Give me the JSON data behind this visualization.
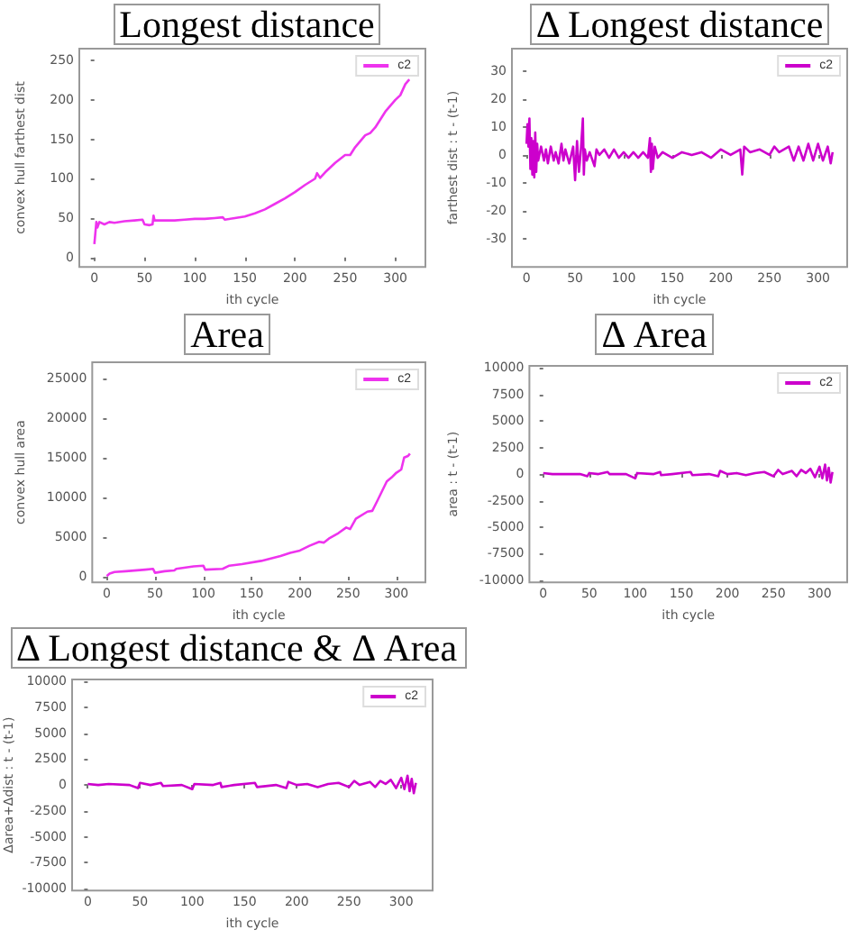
{
  "chart_data": [
    {
      "type": "line",
      "title": "Longest distance",
      "xlabel": "ith cycle",
      "ylabel": "convex hull farthest dist",
      "legend": "top right",
      "xlim": [
        -15,
        330
      ],
      "xticks": [
        0,
        50,
        100,
        150,
        200,
        250,
        300
      ],
      "ylim": [
        -12,
        265
      ],
      "yticks": [
        0,
        50,
        100,
        150,
        200,
        250
      ],
      "x": [
        0,
        2,
        3,
        5,
        10,
        15,
        20,
        30,
        40,
        48,
        50,
        55,
        58,
        59,
        60,
        70,
        80,
        90,
        100,
        110,
        120,
        128,
        130,
        140,
        150,
        160,
        170,
        180,
        190,
        200,
        210,
        220,
        222,
        225,
        230,
        240,
        250,
        255,
        260,
        270,
        275,
        280,
        290,
        300,
        305,
        310,
        314
      ],
      "series": [
        {
          "name": "c2",
          "color": "#ee33ee",
          "values": [
            17,
            45,
            38,
            45,
            42,
            45,
            44,
            46,
            47,
            48,
            42,
            41,
            42,
            53,
            47,
            47,
            47,
            48,
            49,
            49,
            50,
            51,
            48,
            50,
            52,
            56,
            61,
            68,
            75,
            83,
            92,
            100,
            107,
            101,
            108,
            120,
            130,
            130,
            140,
            155,
            158,
            165,
            185,
            200,
            206,
            220,
            226
          ]
        }
      ]
    },
    {
      "type": "line",
      "title": "Δ Longest distance",
      "xlabel": "ith cycle",
      "ylabel": "farthest dist : t - (t-1)",
      "legend": "top right",
      "xlim": [
        -15,
        330
      ],
      "xticks": [
        0,
        50,
        100,
        150,
        200,
        250,
        300
      ],
      "ylim": [
        -40,
        38
      ],
      "yticks": [
        -30,
        -20,
        -10,
        0,
        10,
        20,
        30
      ],
      "x": [
        0,
        1,
        2,
        3,
        4,
        5,
        6,
        7,
        8,
        9,
        10,
        11,
        12,
        15,
        18,
        20,
        22,
        25,
        28,
        30,
        33,
        36,
        38,
        40,
        44,
        48,
        50,
        52,
        54,
        56,
        58,
        59,
        60,
        62,
        65,
        70,
        72,
        75,
        80,
        85,
        90,
        95,
        100,
        105,
        110,
        115,
        120,
        125,
        127,
        128,
        129,
        130,
        132,
        135,
        140,
        150,
        160,
        170,
        180,
        190,
        200,
        210,
        220,
        222,
        224,
        230,
        240,
        250,
        255,
        260,
        270,
        275,
        280,
        285,
        290,
        295,
        300,
        305,
        310,
        313,
        315
      ],
      "series": [
        {
          "name": "c2",
          "color": "#cc00cc",
          "values": [
            4,
            11,
            3,
            13,
            -5,
            6,
            -7,
            5,
            -8,
            8,
            -6,
            4,
            -2,
            3,
            -2,
            2,
            -3,
            3,
            -2,
            1,
            -3,
            4,
            -2,
            2,
            -3,
            3,
            -9,
            5,
            -6,
            2,
            13,
            -7,
            2,
            -2,
            1,
            -4,
            2,
            0,
            2,
            -1,
            2,
            -1,
            1,
            -1,
            1,
            -1,
            1,
            -1,
            6,
            -6,
            4,
            -5,
            3,
            -1,
            1,
            -1,
            1,
            0,
            1,
            -1,
            2,
            0,
            2,
            -7,
            3,
            1,
            2,
            0,
            3,
            1,
            3,
            -2,
            3,
            -2,
            4,
            -2,
            4,
            -2,
            3,
            -3,
            1
          ]
        }
      ]
    },
    {
      "type": "line",
      "title": "Area",
      "xlabel": "ith cycle",
      "ylabel": "convex hull area",
      "legend": "top right",
      "xlim": [
        -15,
        330
      ],
      "xticks": [
        0,
        50,
        100,
        150,
        200,
        250,
        300
      ],
      "ylim": [
        -700,
        27000
      ],
      "yticks": [
        0,
        5000,
        10000,
        15000,
        20000,
        25000
      ],
      "x": [
        0,
        3,
        8,
        20,
        40,
        48,
        50,
        60,
        70,
        72,
        90,
        100,
        102,
        120,
        127,
        140,
        160,
        180,
        190,
        200,
        210,
        220,
        225,
        230,
        240,
        248,
        252,
        258,
        270,
        275,
        280,
        290,
        295,
        300,
        305,
        308,
        312,
        314
      ],
      "series": [
        {
          "name": "c2",
          "color": "#ee33ee",
          "values": [
            100,
            400,
            600,
            700,
            900,
            1000,
            500,
            700,
            800,
            1000,
            1300,
            1400,
            900,
            1000,
            1400,
            1600,
            2000,
            2600,
            3000,
            3300,
            3900,
            4400,
            4300,
            4800,
            5500,
            6200,
            6000,
            7300,
            8200,
            8300,
            9500,
            12000,
            12500,
            13100,
            13500,
            15000,
            15200,
            15500
          ]
        }
      ]
    },
    {
      "type": "line",
      "title": "Δ Area",
      "xlabel": "ith cycle",
      "ylabel": "area : t - (t-1)",
      "legend": "top right",
      "xlim": [
        -15,
        330
      ],
      "xticks": [
        0,
        50,
        100,
        150,
        200,
        250,
        300
      ],
      "ylim": [
        -10200,
        10200
      ],
      "yticks": [
        -10000,
        -7500,
        -5000,
        -2500,
        0,
        2500,
        5000,
        7500,
        10000
      ],
      "x": [
        0,
        10,
        20,
        40,
        48,
        50,
        60,
        70,
        72,
        90,
        100,
        102,
        120,
        127,
        128,
        140,
        160,
        162,
        180,
        190,
        192,
        200,
        210,
        220,
        230,
        240,
        250,
        255,
        260,
        270,
        275,
        280,
        285,
        290,
        295,
        300,
        303,
        306,
        308,
        310,
        312,
        314
      ],
      "series": [
        {
          "name": "c2",
          "color": "#cc00cc",
          "values": [
            100,
            0,
            0,
            0,
            -200,
            100,
            0,
            200,
            0,
            0,
            -400,
            100,
            0,
            200,
            -100,
            0,
            200,
            -100,
            0,
            -200,
            300,
            0,
            100,
            -100,
            100,
            200,
            -200,
            400,
            0,
            300,
            -200,
            400,
            100,
            500,
            -300,
            700,
            -400,
            900,
            -600,
            600,
            -800,
            200
          ]
        }
      ]
    },
    {
      "type": "line",
      "title": "Δ Longest distance & Δ Area",
      "xlabel": "ith cycle",
      "ylabel": "Δarea+Δdist : t - (t-1)",
      "legend": "top right",
      "xlim": [
        -15,
        330
      ],
      "xticks": [
        0,
        50,
        100,
        150,
        200,
        250,
        300
      ],
      "ylim": [
        -10200,
        10200
      ],
      "yticks": [
        -10000,
        -7500,
        -5000,
        -2500,
        0,
        2500,
        5000,
        7500,
        10000
      ],
      "x": [
        0,
        10,
        20,
        40,
        48,
        50,
        60,
        70,
        72,
        90,
        100,
        102,
        120,
        127,
        128,
        140,
        160,
        162,
        180,
        190,
        192,
        200,
        210,
        220,
        230,
        240,
        250,
        255,
        260,
        270,
        275,
        280,
        285,
        290,
        295,
        300,
        303,
        306,
        308,
        310,
        312,
        314
      ],
      "series": [
        {
          "name": "c2",
          "color": "#cc00cc",
          "values": [
            100,
            0,
            100,
            0,
            -300,
            200,
            0,
            200,
            -100,
            0,
            -400,
            100,
            0,
            200,
            -200,
            0,
            200,
            -200,
            0,
            -300,
            300,
            0,
            100,
            -200,
            100,
            200,
            -200,
            400,
            0,
            300,
            -200,
            400,
            100,
            500,
            -300,
            700,
            -400,
            900,
            -600,
            600,
            -800,
            200
          ]
        }
      ]
    }
  ]
}
